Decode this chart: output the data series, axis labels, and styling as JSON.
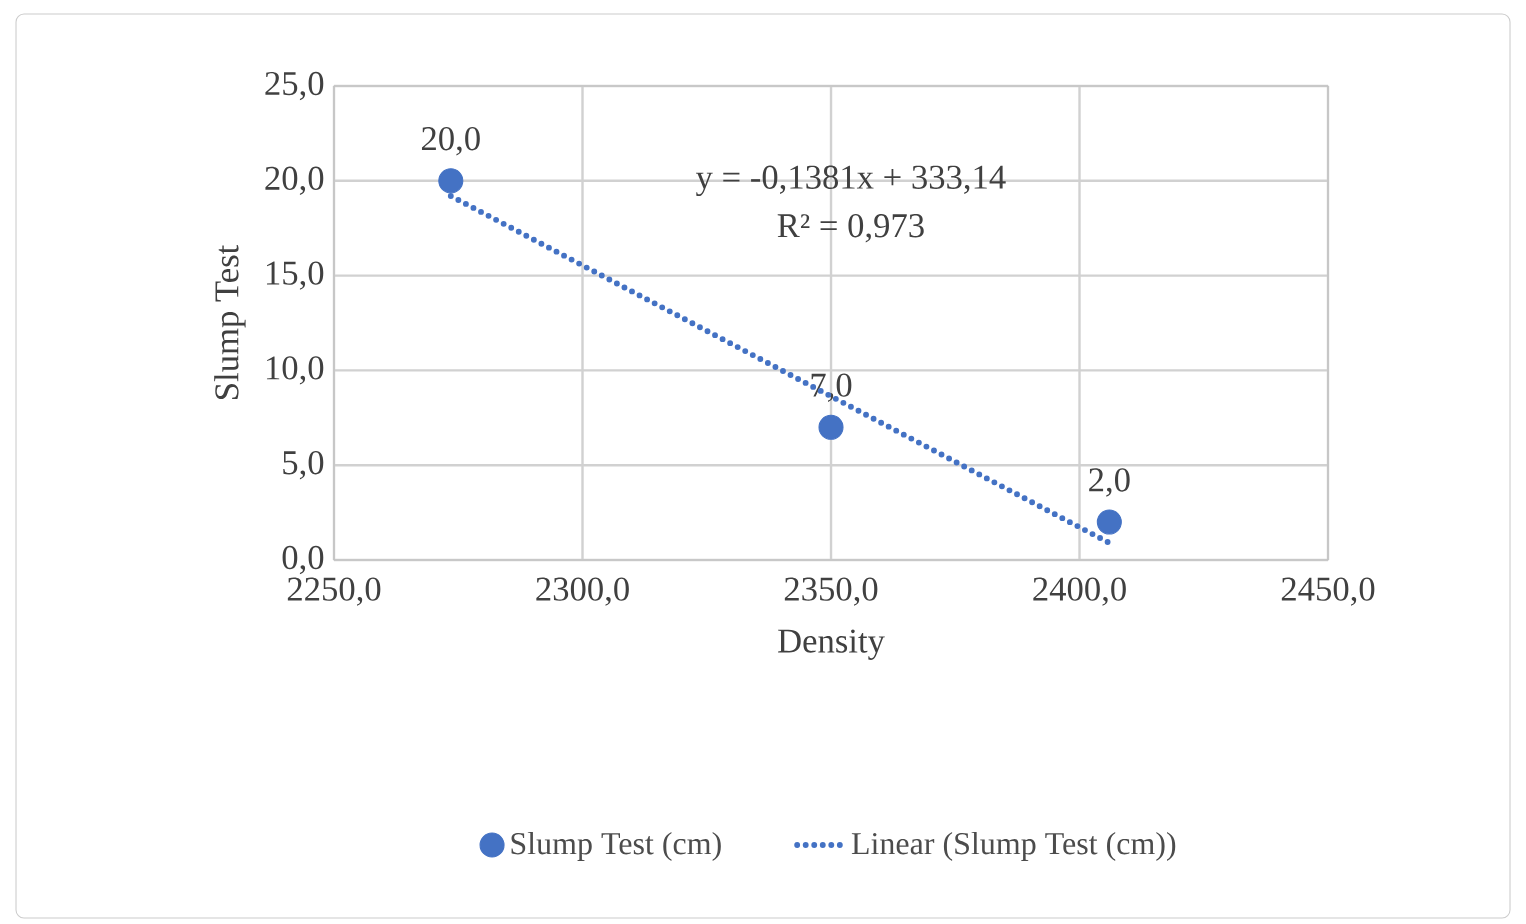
{
  "chart_data": {
    "type": "scatter",
    "xlabel": "Density",
    "ylabel": "Slump Test",
    "series": [
      {
        "name": "Slump Test (cm)",
        "color": "#4472c4",
        "marker": "circle",
        "x": [
          2273.5,
          2350,
          2406
        ],
        "values": [
          20,
          7,
          2
        ],
        "value_labels": [
          "20,0",
          "7,0",
          "2,0"
        ]
      },
      {
        "name": "Linear (Slump Test (cm))",
        "type": "line",
        "color": "#4472c4",
        "marker": "none",
        "line_style": "dotted",
        "x": [
          2273.5,
          2406
        ],
        "values": [
          19.2,
          0.9
        ]
      }
    ],
    "annotations": [
      "y = -0,1381x + 333,14",
      "R² = 0,973"
    ],
    "xlim": [
      2250,
      2450
    ],
    "ylim": [
      0,
      25
    ],
    "xticks": [
      {
        "value": 2250,
        "label": "2250,0"
      },
      {
        "value": 2300,
        "label": "2300,0"
      },
      {
        "value": 2350,
        "label": "2350,0"
      },
      {
        "value": 2400,
        "label": "2400,0"
      },
      {
        "value": 2450,
        "label": "2450,0"
      }
    ],
    "yticks": [
      {
        "value": 0,
        "label": "0,0"
      },
      {
        "value": 5,
        "label": "5,0"
      },
      {
        "value": 10,
        "label": "10,0"
      },
      {
        "value": 15,
        "label": "15,0"
      },
      {
        "value": 20,
        "label": "20,0"
      },
      {
        "value": 25,
        "label": "25,0"
      }
    ],
    "grid": true,
    "legend": "bottom"
  }
}
